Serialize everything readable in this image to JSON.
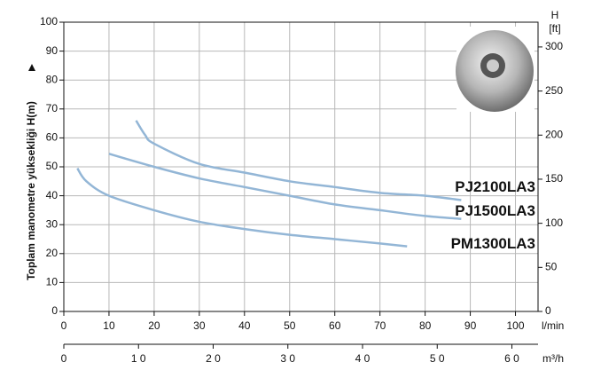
{
  "chart_data": {
    "type": "line",
    "ylabel": "Toplam manometre yüksekliği  H(m)",
    "y2label": "H",
    "y2unit": "[ft]",
    "xlabel": "l/min",
    "x2label": "m³/h",
    "xlim": [
      0,
      105
    ],
    "xticks": [
      0,
      10,
      20,
      30,
      40,
      50,
      60,
      70,
      80,
      90,
      100
    ],
    "x2lim": [
      0,
      63.5
    ],
    "x2ticks": [
      0,
      {
        "value": 10,
        "label": "1 0"
      },
      {
        "value": 20,
        "label": "2 0"
      },
      {
        "value": 30,
        "label": "3 0"
      },
      {
        "value": 40,
        "label": "4 0"
      },
      {
        "value": 50,
        "label": "5 0"
      },
      {
        "value": 60,
        "label": "6 0"
      }
    ],
    "ylim": [
      0,
      100
    ],
    "yticks": [
      0,
      10,
      20,
      30,
      40,
      50,
      60,
      70,
      80,
      90,
      100
    ],
    "y2lim": [
      0,
      328.08
    ],
    "y2ticks": [
      0,
      50,
      100,
      150,
      200,
      250,
      300
    ],
    "grid": true,
    "series": [
      {
        "name": "PJ2100LA3",
        "color": "#93b6d6",
        "label_color": "#1d6e8c",
        "x": [
          16,
          18,
          20,
          30,
          40,
          50,
          60,
          70,
          80,
          88
        ],
        "values": [
          66,
          61,
          58,
          51,
          48,
          45,
          43,
          41,
          40,
          38.5
        ]
      },
      {
        "name": "PJ1500LA3",
        "color": "#93b6d6",
        "label_color": "#1d6e8c",
        "x": [
          10,
          20,
          30,
          40,
          50,
          60,
          70,
          80,
          88
        ],
        "values": [
          54.5,
          50,
          46,
          43,
          40,
          37,
          35,
          33,
          32
        ]
      },
      {
        "name": "PM1300LA3",
        "color": "#93b6d6",
        "label_color": "#1d6e8c",
        "x": [
          3,
          5,
          10,
          20,
          30,
          40,
          50,
          60,
          70,
          76
        ],
        "values": [
          49.5,
          45,
          40,
          35,
          31,
          28.5,
          26.5,
          25,
          23.5,
          22.5
        ]
      }
    ]
  }
}
